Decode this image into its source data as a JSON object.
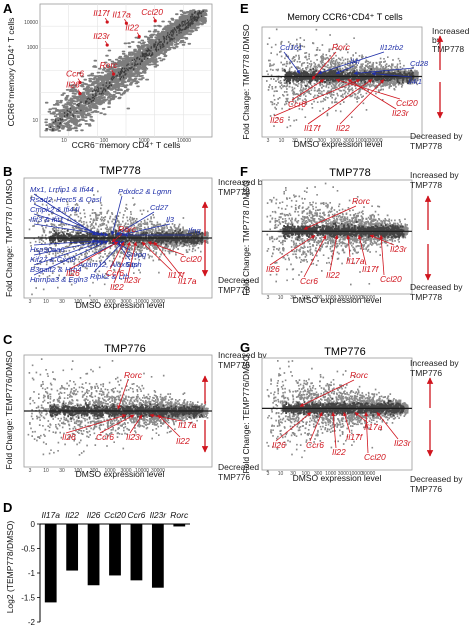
{
  "panel_labels": {
    "A": "A",
    "B": "B",
    "C": "C",
    "D": "D",
    "E": "E",
    "F": "F",
    "G": "G"
  },
  "panelA": {
    "ylabel": "CCR6⁺memory CD4⁺ T cells",
    "xlabel": "CCR6⁻memory CD4⁺ T cells",
    "y_ticks": [
      "10000",
      "1000",
      "10"
    ],
    "x_ticks": [
      "10",
      "100",
      "1000",
      "10000"
    ],
    "genes": [
      {
        "name": "Il17f",
        "x": 0.32,
        "y": 0.95
      },
      {
        "name": "Il17a",
        "x": 0.44,
        "y": 0.94
      },
      {
        "name": "Ccl20",
        "x": 0.62,
        "y": 0.96
      },
      {
        "name": "Il22",
        "x": 0.52,
        "y": 0.83
      },
      {
        "name": "Il23r",
        "x": 0.32,
        "y": 0.76
      },
      {
        "name": "Rorc",
        "x": 0.36,
        "y": 0.52
      },
      {
        "name": "Ccr6",
        "x": 0.15,
        "y": 0.45
      },
      {
        "name": "Il26",
        "x": 0.15,
        "y": 0.36
      }
    ]
  },
  "panelB": {
    "title": "TMP778",
    "ylabel": "Fold Change: TMP778 / DMSO",
    "xlabel": "DMSO expression level",
    "increased": "Increased by TMP778",
    "decreased": "Decreased by TMP778",
    "blue_up": [
      "Mx1, Lrrfip1 & Ifi44",
      "Rsad2, Herc5 & Oasl",
      "Cmpk2 & Ifi44l",
      "Ifit3 & Ifit1",
      "Pdxdc2 & Lgmn",
      "Cd27",
      "Il3",
      "Ifng"
    ],
    "blue_down": [
      "Hsp90aa6",
      "Kif27 & Cxcl9",
      "B3galt2 & Hrh4",
      "Hnrnpa3 & Egln3",
      "Snrpg",
      "Ctsh",
      "Adam12, Alox5ap",
      "Ripk2 & Ltb"
    ],
    "red": [
      "Rorc",
      "Il26",
      "Ccr6",
      "Il22",
      "Il23r",
      "Il17f",
      "Ccl20",
      "Il17a"
    ]
  },
  "panelC": {
    "title": "TMP776",
    "ylabel": "Fold Change: TEMP776/DMSO",
    "xlabel": "DMSO expression level",
    "increased": "Increased by TMP776",
    "decreased": "Decreased by TMP776",
    "red": [
      "Rorc",
      "Il26",
      "Ccr6",
      "Il23r",
      "Il17a",
      "Il22"
    ]
  },
  "panelD": {
    "ylabel": "Log2 (TEMP778/DMSO)",
    "y_ticks": [
      "0",
      "-0.5",
      "-1",
      "-1.5",
      "-2"
    ],
    "categories": [
      "Il17a",
      "Il22",
      "Il26",
      "Ccl20",
      "Ccr6",
      "Il23r",
      "Rorc"
    ]
  },
  "panelE": {
    "title": "Memory CCR6⁺CD4⁺ T cells",
    "ylabel": "Fold Change: TMP778 /DMSO",
    "xlabel": "DMSO expression level",
    "increased": "Increased by TMP778",
    "decreased": "Decreased by TMP778",
    "blue": [
      "Cd161",
      "Il12rb2",
      "Il4r",
      "Cd28",
      "Il4i1"
    ],
    "red": [
      "Rorc",
      "Ccr6",
      "Ccl20",
      "Il23r",
      "Il26",
      "Il17f",
      "Il22"
    ]
  },
  "panelF": {
    "title": "TMP778",
    "ylabel": "Fold Change: TMP778 /DMSO",
    "xlabel": "DMSO expression level",
    "increased": "Increased by TMP778",
    "decreased": "Decreased by TMP778",
    "red": [
      "Rorc",
      "Il26",
      "Ccr6",
      "Il22",
      "Il17a",
      "Il17f",
      "Il23r",
      "Ccl20"
    ]
  },
  "panelG": {
    "title": "TMP776",
    "ylabel": "Fold Change: TEMP776/DMSO",
    "xlabel": "DMSO expression level",
    "increased": "Increased by TMP776",
    "decreased": "Decreased by TMP776",
    "red": [
      "Rorc",
      "Il26",
      "Ccr6",
      "Il22",
      "Il17f",
      "Il17a",
      "Ccl20",
      "Il23r"
    ]
  },
  "chart_data": [
    {
      "type": "bar",
      "categories": [
        "Il17a",
        "Il22",
        "Il26",
        "Ccl20",
        "Ccr6",
        "Il23r",
        "Rorc"
      ],
      "values": [
        -1.6,
        -0.95,
        -1.25,
        -1.05,
        -1.15,
        -1.3,
        -0.05
      ],
      "ylabel": "Log2 (TEMP778/DMSO)",
      "ylim": [
        -2,
        0
      ],
      "color": "#000000"
    },
    {
      "type": "scatter",
      "xlabel": "CCR6⁻memory CD4⁺ T cells",
      "ylabel": "CCR6⁺memory CD4⁺ T cells",
      "point_color": "#888888",
      "highlight_color": "#d0151e"
    }
  ]
}
